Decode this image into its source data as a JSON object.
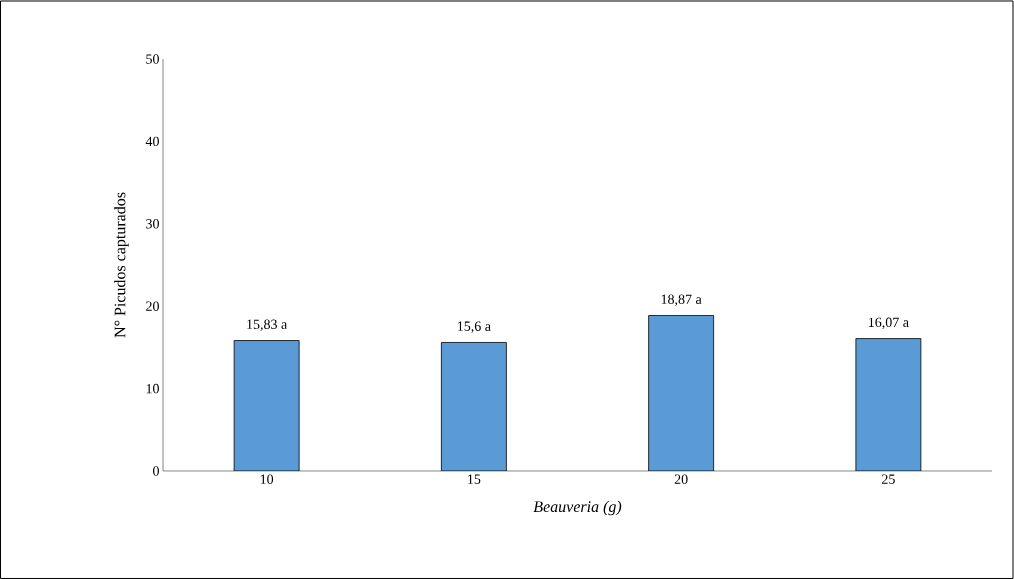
{
  "chart_data": {
    "type": "bar",
    "xlabel": "Beauveria (g)",
    "ylabel": "N° Picudos capturados",
    "categories": [
      "10",
      "15",
      "20",
      "25"
    ],
    "values": [
      15.83,
      15.6,
      18.87,
      16.07
    ],
    "value_labels": [
      "15,83 a",
      "15,6 a",
      "18,87 a",
      "16,07 a"
    ],
    "color": "#5b9bd5",
    "ylim": [
      0,
      50
    ],
    "yticks": [
      0,
      10,
      20,
      30,
      40,
      50
    ],
    "grid": false
  }
}
